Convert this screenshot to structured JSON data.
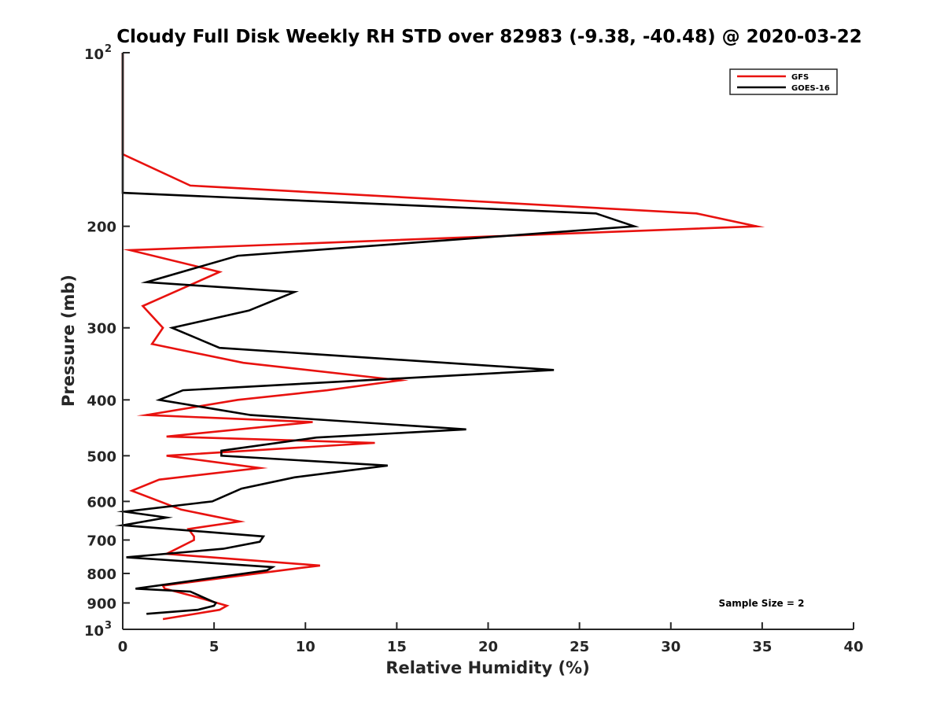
{
  "chart_data": {
    "type": "line",
    "title": "Cloudy Full Disk Weekly RH STD over 82983 (-9.38, -40.48) @ 2020-03-22",
    "xlabel": "Relative Humidity (%)",
    "ylabel": "Pressure (mb)",
    "xlim": [
      0,
      40
    ],
    "ylim": [
      100,
      1000
    ],
    "yscale": "log",
    "y_reversed": true,
    "x_ticks": [
      "0",
      "5",
      "10",
      "15",
      "20",
      "25",
      "30",
      "35",
      "40"
    ],
    "y_ticks": [
      {
        "value": 100,
        "base": "10",
        "exp": "2"
      },
      {
        "value": 200,
        "label": "200"
      },
      {
        "value": 300,
        "label": "300"
      },
      {
        "value": 400,
        "label": "400"
      },
      {
        "value": 500,
        "label": "500"
      },
      {
        "value": 600,
        "label": "600"
      },
      {
        "value": 700,
        "label": "700"
      },
      {
        "value": 800,
        "label": "800"
      },
      {
        "value": 900,
        "label": "900"
      },
      {
        "value": 1000,
        "base": "10",
        "exp": "3"
      }
    ],
    "legend_position": "top-right",
    "annotation": "Sample Size = 2",
    "series": [
      {
        "name": "GFS",
        "color": "#e8120f",
        "points": [
          [
            0,
            100
          ],
          [
            0,
            125
          ],
          [
            0,
            150
          ],
          [
            3.7,
            170
          ],
          [
            31.4,
            190
          ],
          [
            34.7,
            200
          ],
          [
            0.4,
            220
          ],
          [
            5.3,
            240
          ],
          [
            1.1,
            275
          ],
          [
            2.2,
            300
          ],
          [
            1.6,
            320
          ],
          [
            6.6,
            345
          ],
          [
            15.2,
            370
          ],
          [
            11.2,
            385
          ],
          [
            6.3,
            400
          ],
          [
            1.3,
            425
          ],
          [
            10.4,
            437
          ],
          [
            2.4,
            463
          ],
          [
            13.8,
            475
          ],
          [
            2.4,
            500
          ],
          [
            7.5,
            525
          ],
          [
            2.0,
            550
          ],
          [
            0.5,
            575
          ],
          [
            3.2,
            620
          ],
          [
            6.4,
            650
          ],
          [
            3.6,
            670
          ],
          [
            3.9,
            690
          ],
          [
            3.9,
            700
          ],
          [
            2.4,
            740
          ],
          [
            10.8,
            775
          ],
          [
            9.4,
            785
          ],
          [
            2.2,
            840
          ],
          [
            2.3,
            850
          ],
          [
            4.1,
            880
          ],
          [
            5.7,
            910
          ],
          [
            5.3,
            925
          ],
          [
            2.2,
            960
          ]
        ]
      },
      {
        "name": "GOES-16",
        "color": "#000000",
        "points": [
          [
            0,
            100
          ],
          [
            0,
            125
          ],
          [
            0,
            150
          ],
          [
            0,
            175
          ],
          [
            25.9,
            190
          ],
          [
            28.0,
            200
          ],
          [
            6.3,
            225
          ],
          [
            1.3,
            250
          ],
          [
            9.4,
            260
          ],
          [
            6.9,
            280
          ],
          [
            2.7,
            300
          ],
          [
            5.3,
            325
          ],
          [
            23.6,
            355
          ],
          [
            3.3,
            385
          ],
          [
            2.0,
            400
          ],
          [
            7.0,
            425
          ],
          [
            18.8,
            450
          ],
          [
            10.6,
            465
          ],
          [
            5.4,
            490
          ],
          [
            5.4,
            500
          ],
          [
            14.5,
            520
          ],
          [
            9.4,
            545
          ],
          [
            6.5,
            570
          ],
          [
            4.9,
            600
          ],
          [
            0.1,
            625
          ],
          [
            2.4,
            640
          ],
          [
            0,
            660
          ],
          [
            7.7,
            690
          ],
          [
            7.5,
            705
          ],
          [
            5.5,
            725
          ],
          [
            0.2,
            750
          ],
          [
            8.2,
            780
          ],
          [
            7.9,
            790
          ],
          [
            0.7,
            850
          ],
          [
            3.7,
            860
          ],
          [
            5.1,
            900
          ],
          [
            5.0,
            910
          ],
          [
            4.1,
            925
          ],
          [
            1.3,
            940
          ]
        ]
      }
    ]
  }
}
